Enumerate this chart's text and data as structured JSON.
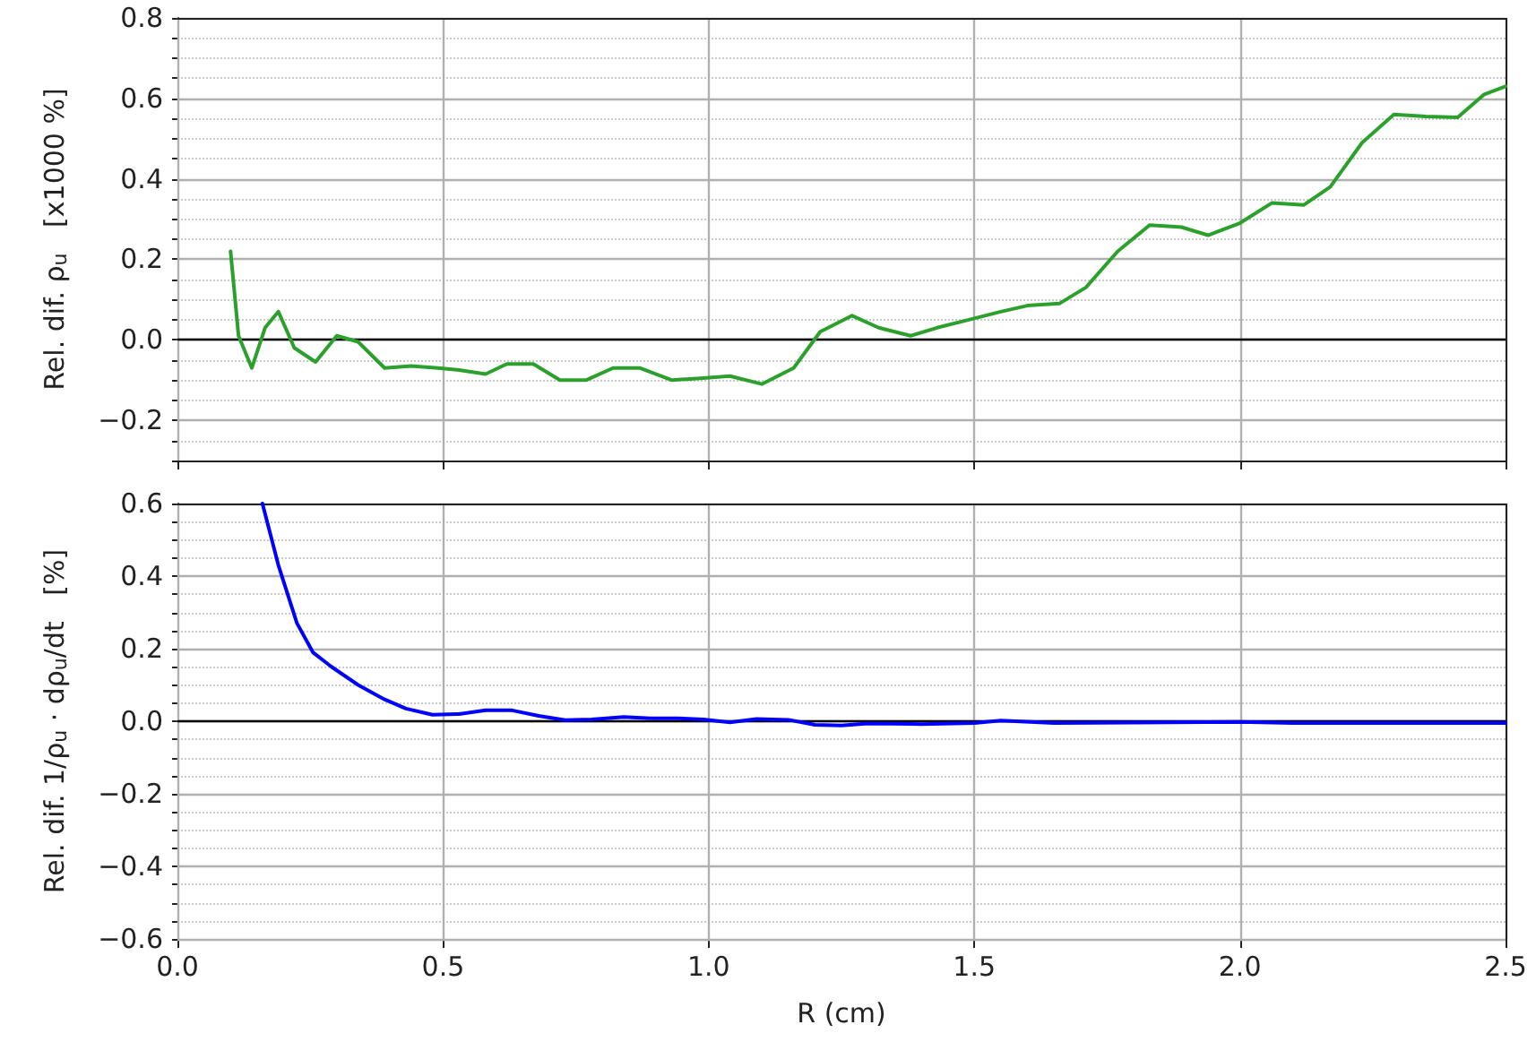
{
  "chart_data": [
    {
      "type": "line",
      "ylabel": "Rel. dif. ρ$_{u}$   [x1000 %]",
      "xlim": [
        0,
        2.5
      ],
      "xticks": [
        {
          "value": 0,
          "label": null
        },
        {
          "value": 0.5,
          "label": null
        },
        {
          "value": 1,
          "label": null
        },
        {
          "value": 1.5,
          "label": null
        },
        {
          "value": 2,
          "label": null
        },
        {
          "value": 2.5,
          "label": null
        }
      ],
      "ylim": [
        -0.3,
        0.8
      ],
      "yticks": [
        {
          "value": -0.2,
          "label": "−0.2"
        },
        {
          "value": 0,
          "label": "0.0"
        },
        {
          "value": 0.2,
          "label": "0.2"
        },
        {
          "value": 0.4,
          "label": "0.4"
        },
        {
          "value": 0.6,
          "label": "0.6"
        },
        {
          "value": 0.8,
          "label": "0.8"
        }
      ],
      "tick_labels": "y",
      "grid": true,
      "marker": "none",
      "line_style": "solid",
      "ref_lines": [
        {
          "axis": "y",
          "value": 0,
          "color": "#000000"
        }
      ],
      "series": [
        {
          "color": "#2ca02c",
          "x": [
            0.1,
            0.115,
            0.14,
            0.165,
            0.19,
            0.22,
            0.26,
            0.3,
            0.34,
            0.39,
            0.44,
            0.49,
            0.53,
            0.58,
            0.62,
            0.67,
            0.72,
            0.77,
            0.82,
            0.87,
            0.93,
            0.99,
            1.04,
            1.1,
            1.16,
            1.21,
            1.27,
            1.32,
            1.38,
            1.43,
            1.49,
            1.55,
            1.6,
            1.66,
            1.71,
            1.77,
            1.83,
            1.89,
            1.94,
            2.0,
            2.06,
            2.12,
            2.17,
            2.23,
            2.29,
            2.35,
            2.41,
            2.46,
            2.5
          ],
          "values": [
            0.22,
            0.01,
            -0.07,
            0.03,
            0.07,
            -0.02,
            -0.055,
            0.01,
            -0.005,
            -0.07,
            -0.065,
            -0.07,
            -0.075,
            -0.085,
            -0.06,
            -0.06,
            -0.1,
            -0.1,
            -0.07,
            -0.07,
            -0.1,
            -0.095,
            -0.09,
            -0.11,
            -0.07,
            0.02,
            0.06,
            0.03,
            0.01,
            0.03,
            0.05,
            0.07,
            0.085,
            0.09,
            0.13,
            0.22,
            0.285,
            0.28,
            0.26,
            0.29,
            0.34,
            0.335,
            0.38,
            0.49,
            0.56,
            0.555,
            0.553,
            0.61,
            0.63
          ]
        }
      ]
    },
    {
      "type": "line",
      "xlabel": "R (cm)",
      "ylabel": "Rel. dif. 1/ρ$_{u}$ · dρ$_{u}$/dt   [%]",
      "xlim": [
        0,
        2.5
      ],
      "xticks": [
        {
          "value": 0,
          "label": "0.0"
        },
        {
          "value": 0.5,
          "label": "0.5"
        },
        {
          "value": 1,
          "label": "1.0"
        },
        {
          "value": 1.5,
          "label": "1.5"
        },
        {
          "value": 2,
          "label": "2.0"
        },
        {
          "value": 2.5,
          "label": "2.5"
        }
      ],
      "ylim": [
        -0.6,
        0.6
      ],
      "yticks": [
        {
          "value": -0.6,
          "label": "−0.6"
        },
        {
          "value": -0.4,
          "label": "−0.4"
        },
        {
          "value": -0.2,
          "label": "−0.2"
        },
        {
          "value": 0,
          "label": "0.0"
        },
        {
          "value": 0.2,
          "label": "0.2"
        },
        {
          "value": 0.4,
          "label": "0.4"
        },
        {
          "value": 0.6,
          "label": "0.6"
        }
      ],
      "grid": true,
      "marker": "none",
      "line_style": "solid",
      "ref_lines": [
        {
          "axis": "y",
          "value": 0,
          "color": "#000000"
        }
      ],
      "series": [
        {
          "color": "#0000ff",
          "x": [
            0.16,
            0.19,
            0.225,
            0.255,
            0.29,
            0.34,
            0.39,
            0.43,
            0.48,
            0.53,
            0.58,
            0.63,
            0.68,
            0.73,
            0.78,
            0.84,
            0.89,
            0.94,
            0.99,
            1.04,
            1.09,
            1.15,
            1.2,
            1.25,
            1.3,
            1.4,
            1.5,
            1.55,
            1.65,
            1.8,
            2.0,
            2.1,
            2.5
          ],
          "values": [
            0.6,
            0.43,
            0.27,
            0.19,
            0.15,
            0.1,
            0.06,
            0.035,
            0.018,
            0.02,
            0.03,
            0.03,
            0.015,
            0.003,
            0.005,
            0.012,
            0.008,
            0.008,
            0.005,
            -0.003,
            0.006,
            0.004,
            -0.01,
            -0.012,
            -0.006,
            -0.008,
            -0.005,
            0.002,
            -0.005,
            -0.004,
            -0.002,
            -0.005,
            -0.005
          ]
        }
      ]
    }
  ]
}
